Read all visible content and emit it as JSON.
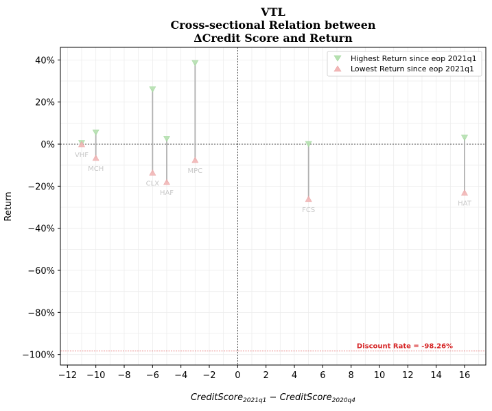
{
  "chart_data": {
    "type": "scatter",
    "title_lines": [
      "VTL",
      "Cross-sectional Relation between",
      "ΔCredit Score and Return"
    ],
    "xlabel": {
      "base1": "CreditScore",
      "sub1": "2021q1",
      "minus": " − ",
      "base2": "CreditScore",
      "sub2": "2020q4"
    },
    "ylabel": "Return",
    "xlim": [
      -12.5,
      17.5
    ],
    "ylim": [
      -105,
      46
    ],
    "x_ticks": [
      -12,
      -10,
      -8,
      -6,
      -4,
      -2,
      0,
      2,
      4,
      6,
      8,
      10,
      12,
      14,
      16
    ],
    "x_tick_labels": [
      "−12",
      "−10",
      "−8",
      "−6",
      "−4",
      "−2",
      "0",
      "2",
      "4",
      "6",
      "8",
      "10",
      "12",
      "14",
      "16"
    ],
    "y_ticks": [
      40,
      20,
      0,
      -20,
      -40,
      -60,
      -80,
      -100
    ],
    "y_tick_labels": [
      "40%",
      "20%",
      "0%",
      "−20%",
      "−40%",
      "−60%",
      "−80%",
      "−100%"
    ],
    "grid": true,
    "legend_position": "top-right",
    "series": [
      {
        "name": "Highest Return since eop 2021q1",
        "color": "#b5e0b0",
        "marker": "triangle-down"
      },
      {
        "name": "Lowest Return since eop 2021q1",
        "color": "#f2b6b6",
        "marker": "triangle-up"
      }
    ],
    "points": [
      {
        "label": "VHF",
        "x": -11,
        "high": 0.5,
        "low": 0
      },
      {
        "label": "MCH",
        "x": -10,
        "high": 5.5,
        "low": -6.5
      },
      {
        "label": "CLX",
        "x": -6,
        "high": 26,
        "low": -13.5
      },
      {
        "label": "HAF",
        "x": -5,
        "high": 2.5,
        "low": -18
      },
      {
        "label": "MPC",
        "x": -3,
        "high": 38.5,
        "low": -7.5
      },
      {
        "label": "FCS",
        "x": 5,
        "high": 0,
        "low": -26
      },
      {
        "label": "HAT",
        "x": 16,
        "high": 3,
        "low": -23
      }
    ],
    "discount_rate": {
      "value": -98.26,
      "label": "Discount Rate = -98.26%",
      "color": "#d62728"
    }
  }
}
